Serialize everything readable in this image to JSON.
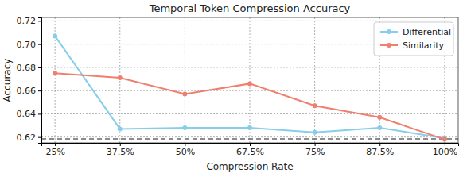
{
  "chart_data": {
    "type": "line",
    "title": "Temporal Token Compression Accuracy",
    "x_label": "Compression Rate",
    "y_label": "Accuracy",
    "categories": [
      "25%",
      "37.5%",
      "50%",
      "67.5%",
      "75%",
      "87.5%",
      "100%"
    ],
    "series": [
      {
        "name": "Differential",
        "color": "#87ceeb",
        "marker": "circle",
        "line_style": "solid",
        "values": [
          0.707,
          0.627,
          0.628,
          0.628,
          0.624,
          0.628,
          0.619
        ]
      },
      {
        "name": "Similarity",
        "color": "#f07f6e",
        "marker": "circle",
        "line_style": "solid",
        "values": [
          0.675,
          0.671,
          0.657,
          0.666,
          0.647,
          0.637,
          0.618
        ]
      }
    ],
    "reference_line": 0.6185,
    "ylim": [
      0.615,
      0.723
    ],
    "yticks": [
      0.62,
      0.64,
      0.66,
      0.68,
      {
        "value": 0.7,
        "label": "0.70"
      },
      0.72
    ],
    "grid": true,
    "legend": "upper right"
  }
}
